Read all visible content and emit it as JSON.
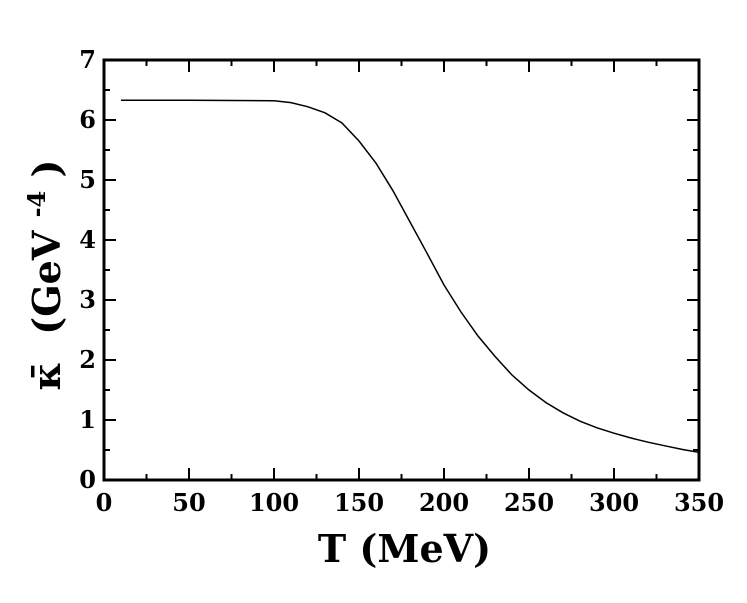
{
  "chart_data": {
    "type": "line",
    "title": "",
    "xlabel": "T (MeV)",
    "ylabel": {
      "symbol": "κ̄",
      "unit_open": "(GeV",
      "unit_exponent": "-4",
      "unit_close": ")"
    },
    "xlim": [
      0,
      350
    ],
    "ylim": [
      0,
      7
    ],
    "x_ticks": [
      "0",
      "50",
      "100",
      "150",
      "200",
      "250",
      "300",
      "350"
    ],
    "y_ticks": [
      "0",
      "1",
      "2",
      "3",
      "4",
      "5",
      "6",
      "7"
    ],
    "grid": false,
    "legend": "none",
    "line_color": "#000000",
    "series": [
      {
        "x": [
          10,
          50,
          100,
          110,
          120,
          130,
          140,
          150,
          160,
          170,
          180,
          190,
          200,
          210,
          220,
          230,
          240,
          250,
          260,
          270,
          280,
          290,
          300,
          310,
          320,
          330,
          340,
          350
        ],
        "y": [
          6.33,
          6.33,
          6.32,
          6.29,
          6.22,
          6.12,
          5.95,
          5.65,
          5.28,
          4.82,
          4.3,
          3.78,
          3.25,
          2.8,
          2.4,
          2.06,
          1.75,
          1.5,
          1.29,
          1.12,
          0.98,
          0.87,
          0.78,
          0.7,
          0.63,
          0.57,
          0.51,
          0.46
        ]
      }
    ]
  }
}
